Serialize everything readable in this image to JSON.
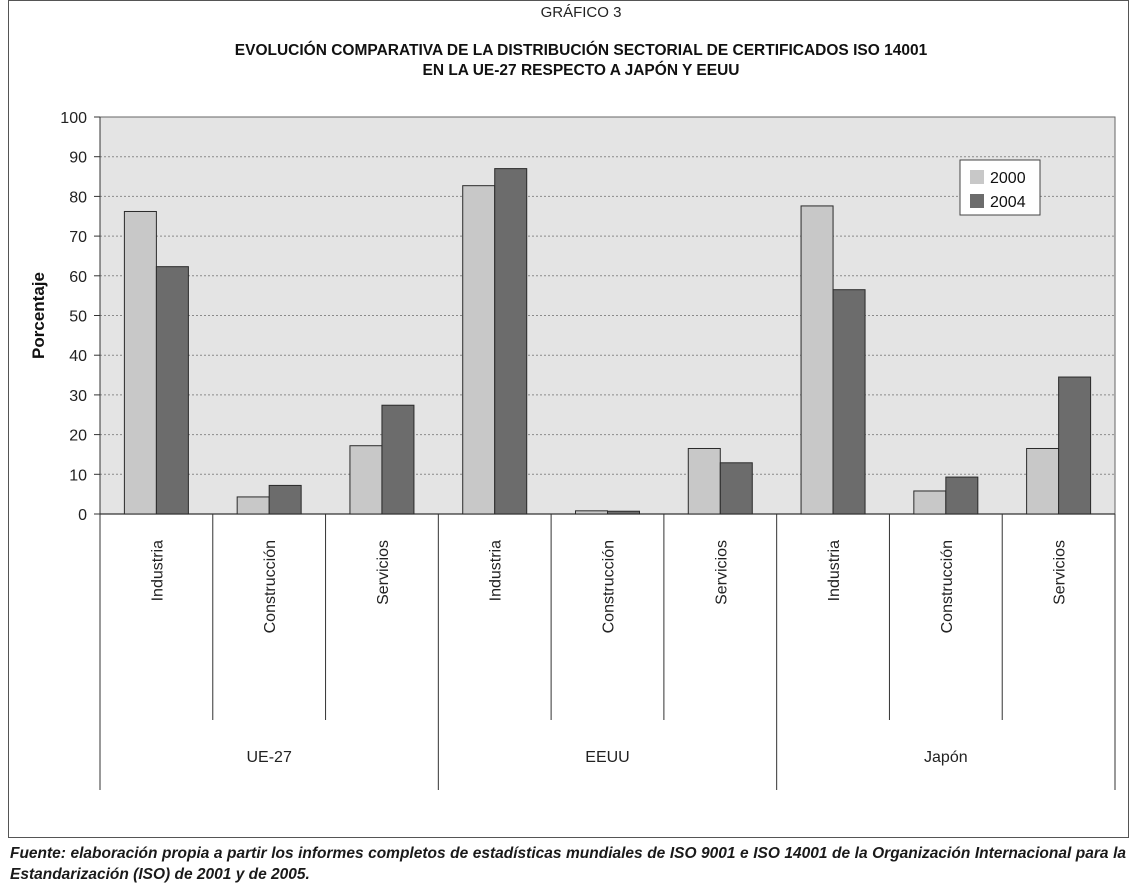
{
  "chart_data": {
    "type": "bar",
    "supertitle": "GRÁFICO 3",
    "title_lines": [
      "EVOLUCIÓN COMPARATIVA DE LA DISTRIBUCIÓN SECTORIAL DE CERTIFICADOS ISO 14001",
      "EN LA UE-27 RESPECTO A JAPÓN Y EEUU"
    ],
    "ylabel": "Porcentaje",
    "ylim": [
      0,
      100
    ],
    "yticks": [
      "0",
      "10",
      "20",
      "30",
      "40",
      "50",
      "60",
      "70",
      "80",
      "90",
      "100"
    ],
    "grid": true,
    "legend_position": "top-right",
    "groups": [
      {
        "label": "UE-27",
        "categories": [
          "Industria",
          "Construcción",
          "Servicios"
        ]
      },
      {
        "label": "EEUU",
        "categories": [
          "Industria",
          "Construcción",
          "Servicios"
        ]
      },
      {
        "label": "Japón",
        "categories": [
          "Industria",
          "Construcción",
          "Servicios"
        ]
      }
    ],
    "series": [
      {
        "name": "2000",
        "color": "#c8c8c8",
        "values": [
          76.2,
          4.3,
          17.2,
          82.7,
          0.8,
          16.5,
          77.6,
          5.8,
          16.5
        ]
      },
      {
        "name": "2004",
        "color": "#6c6c6c",
        "values": [
          62.3,
          7.2,
          27.4,
          87.0,
          0.7,
          12.9,
          56.5,
          9.3,
          34.5
        ]
      }
    ],
    "plot_background": "#e4e4e4"
  },
  "source": "Fuente: elaboración propia a partir los informes completos de estadísticas mundiales de ISO 9001 e ISO 14001 de la Organización Internacional para la Estandarización (ISO) de  2001 y de 2005."
}
